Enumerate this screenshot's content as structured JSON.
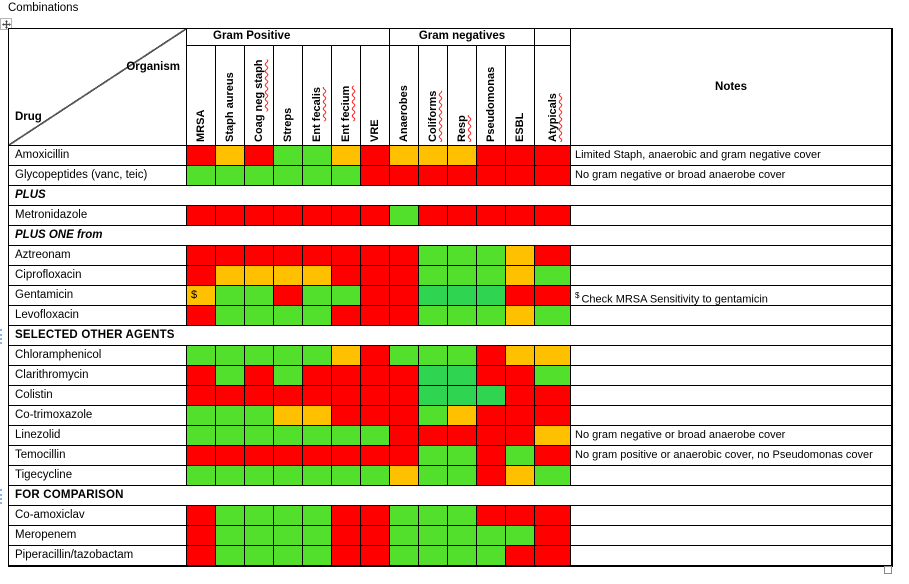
{
  "title": "Combinations",
  "colors": {
    "R": "#ff0000",
    "O": "#ffc000",
    "G": "#53e02c",
    "E": "#2fd451"
  },
  "table": {
    "corner": {
      "top_label": "Organism",
      "bottom_label": "Drug"
    },
    "groups": [
      {
        "label": "Gram Positive",
        "span": 7
      },
      {
        "label": "Gram negatives",
        "span": 5
      },
      {
        "label": "",
        "span": 1
      }
    ],
    "notes_header": "Notes",
    "columns": [
      {
        "parts": [
          {
            "t": "MRSA",
            "w": 0
          }
        ]
      },
      {
        "parts": [
          {
            "t": "Staph aureus",
            "w": 0
          }
        ]
      },
      {
        "parts": [
          {
            "t": "Coag ",
            "w": 0
          },
          {
            "t": "neg staph",
            "w": 1
          }
        ]
      },
      {
        "parts": [
          {
            "t": "Streps",
            "w": 0
          }
        ]
      },
      {
        "parts": [
          {
            "t": "Ent ",
            "w": 0
          },
          {
            "t": "fecalis",
            "w": 1
          }
        ]
      },
      {
        "parts": [
          {
            "t": "Ent ",
            "w": 0
          },
          {
            "t": "fecium",
            "w": 1
          }
        ]
      },
      {
        "parts": [
          {
            "t": "VRE",
            "w": 0
          }
        ]
      },
      {
        "parts": [
          {
            "t": "Anaerobes",
            "w": 0
          }
        ]
      },
      {
        "parts": [
          {
            "t": "Coliforms",
            "w": 1
          }
        ]
      },
      {
        "parts": [
          {
            "t": "Resp",
            "w": 1
          }
        ]
      },
      {
        "parts": [
          {
            "t": "Pseudomonas",
            "w": 0
          }
        ]
      },
      {
        "parts": [
          {
            "t": "ESBL",
            "w": 0
          }
        ]
      },
      {
        "parts": [
          {
            "t": "Atypicals",
            "w": 1
          }
        ]
      }
    ],
    "rows": [
      {
        "type": "drug",
        "name": "Amoxicillin",
        "cells": [
          "R",
          "O",
          "R",
          "G",
          "G",
          "O",
          "R",
          "O",
          "O",
          "O",
          "R",
          "R",
          "R"
        ],
        "note": "Limited Staph, anaerobic and gram negative cover"
      },
      {
        "type": "drug",
        "name": "Glycopeptides (vanc, teic)",
        "cells": [
          "G",
          "G",
          "G",
          "G",
          "G",
          "G",
          "R",
          "R",
          "R",
          "R",
          "R",
          "R",
          "R"
        ],
        "note": "No gram negative or broad anaerobe cover"
      },
      {
        "type": "section",
        "name": "PLUS",
        "style": "italic"
      },
      {
        "type": "drug",
        "name": "Metronidazole",
        "cells": [
          "R",
          "R",
          "R",
          "R",
          "R",
          "R",
          "R",
          "G",
          "R",
          "R",
          "R",
          "R",
          "R"
        ],
        "note": ""
      },
      {
        "type": "section",
        "name": "PLUS ONE from",
        "style": "italic"
      },
      {
        "type": "drug",
        "name": "Aztreonam",
        "cells": [
          "R",
          "R",
          "R",
          "R",
          "R",
          "R",
          "R",
          "R",
          "G",
          "G",
          "G",
          "O",
          "R"
        ],
        "note": ""
      },
      {
        "type": "drug",
        "name": "Ciprofloxacin",
        "cells": [
          "R",
          "O",
          "O",
          "O",
          "O",
          "R",
          "R",
          "R",
          "G",
          "G",
          "G",
          "O",
          "G"
        ],
        "note": ""
      },
      {
        "type": "drug",
        "name": "Gentamicin",
        "cells": [
          "O",
          "G",
          "G",
          "R",
          "G",
          "G",
          "R",
          "R",
          "E",
          "E",
          "E",
          "R",
          "R"
        ],
        "cell_text": {
          "0": "$"
        },
        "note_sup": "$",
        "note": "Check MRSA Sensitivity to gentamicin"
      },
      {
        "type": "drug",
        "name": "Levofloxacin",
        "cells": [
          "R",
          "G",
          "G",
          "G",
          "G",
          "R",
          "R",
          "R",
          "G",
          "G",
          "G",
          "O",
          "G"
        ],
        "note": ""
      },
      {
        "type": "section",
        "name": "SELECTED OTHER AGENTS",
        "style": "caps"
      },
      {
        "type": "drug",
        "name": "Chloramphenicol",
        "cells": [
          "G",
          "G",
          "G",
          "G",
          "G",
          "O",
          "R",
          "G",
          "G",
          "G",
          "R",
          "O",
          "O"
        ],
        "note": ""
      },
      {
        "type": "drug",
        "name": "Clarithromycin",
        "cells": [
          "R",
          "G",
          "R",
          "G",
          "R",
          "R",
          "R",
          "R",
          "E",
          "E",
          "R",
          "R",
          "G"
        ],
        "note": ""
      },
      {
        "type": "drug",
        "name": "Colistin",
        "cells": [
          "R",
          "R",
          "R",
          "R",
          "R",
          "R",
          "R",
          "R",
          "E",
          "E",
          "E",
          "R",
          "R"
        ],
        "note": ""
      },
      {
        "type": "drug",
        "name": "Co-trimoxazole",
        "cells": [
          "G",
          "G",
          "G",
          "O",
          "O",
          "R",
          "R",
          "R",
          "G",
          "O",
          "R",
          "R",
          "R"
        ],
        "note": ""
      },
      {
        "type": "drug",
        "name": "Linezolid",
        "cells": [
          "G",
          "G",
          "G",
          "G",
          "G",
          "G",
          "G",
          "R",
          "R",
          "R",
          "R",
          "R",
          "O"
        ],
        "note": "No gram negative or broad anaerobe cover"
      },
      {
        "type": "drug",
        "name": "Temocillin",
        "cells": [
          "R",
          "R",
          "R",
          "R",
          "R",
          "R",
          "R",
          "R",
          "G",
          "G",
          "R",
          "G",
          "R"
        ],
        "note": "No gram positive or anaerobic cover, no Pseudomonas cover"
      },
      {
        "type": "drug",
        "name": "Tigecycline",
        "cells": [
          "G",
          "G",
          "G",
          "G",
          "G",
          "G",
          "G",
          "O",
          "G",
          "G",
          "R",
          "O",
          "G"
        ],
        "note": ""
      },
      {
        "type": "section",
        "name": "FOR COMPARISON",
        "style": "caps"
      },
      {
        "type": "drug",
        "name": "Co-amoxiclav",
        "cells": [
          "R",
          "G",
          "G",
          "G",
          "G",
          "R",
          "R",
          "G",
          "G",
          "G",
          "R",
          "R",
          "R"
        ],
        "note": ""
      },
      {
        "type": "drug",
        "name": "Meropenem",
        "cells": [
          "R",
          "G",
          "G",
          "G",
          "G",
          "R",
          "R",
          "G",
          "G",
          "G",
          "G",
          "G",
          "R"
        ],
        "note": ""
      },
      {
        "type": "drug",
        "name": "Piperacillin/tazobactam",
        "cells": [
          "R",
          "G",
          "G",
          "G",
          "G",
          "R",
          "R",
          "G",
          "G",
          "G",
          "G",
          "R",
          "R"
        ],
        "note": ""
      }
    ]
  }
}
